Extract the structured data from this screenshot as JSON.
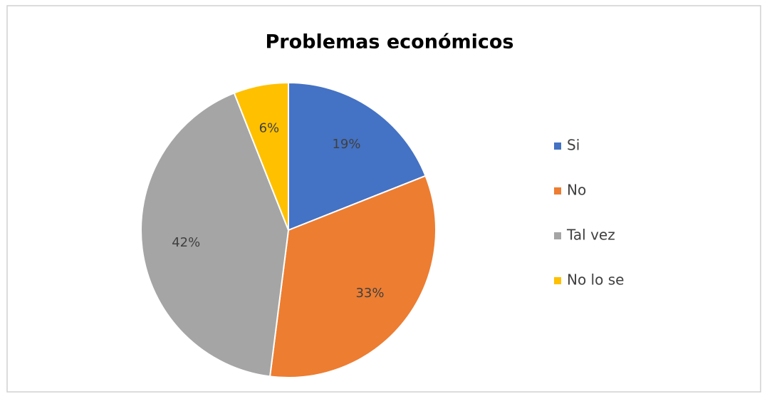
{
  "chart_data": {
    "type": "pie",
    "title": "Problemas económicos",
    "categories": [
      "Si",
      "No",
      "Tal vez",
      "No lo se"
    ],
    "values": [
      19,
      33,
      42,
      6
    ],
    "value_labels": [
      "19%",
      "33%",
      "42%",
      "6%"
    ],
    "colors": [
      "#4472c4",
      "#ed7d31",
      "#a5a5a5",
      "#ffc000"
    ],
    "legend": "right"
  }
}
